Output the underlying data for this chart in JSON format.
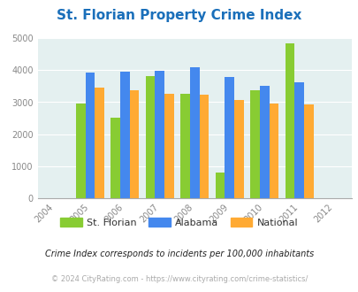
{
  "title": "St. Florian Property Crime Index",
  "years": [
    2005,
    2006,
    2007,
    2008,
    2009,
    2010,
    2011
  ],
  "st_florian": [
    2950,
    2520,
    3820,
    3250,
    820,
    3370,
    4840
  ],
  "alabama": [
    3920,
    3960,
    3980,
    4100,
    3780,
    3520,
    3610
  ],
  "national": [
    3450,
    3360,
    3250,
    3230,
    3060,
    2970,
    2940
  ],
  "colors": {
    "st_florian": "#88cc33",
    "alabama": "#4488ee",
    "national": "#ffaa33"
  },
  "legend_labels": [
    "St. Florian",
    "Alabama",
    "National"
  ],
  "xlim": [
    2003.5,
    2012.5
  ],
  "ylim": [
    0,
    5000
  ],
  "yticks": [
    0,
    1000,
    2000,
    3000,
    4000,
    5000
  ],
  "xticks": [
    2004,
    2005,
    2006,
    2007,
    2008,
    2009,
    2010,
    2011,
    2012
  ],
  "bg_color": "#e4f0f0",
  "subtitle": "Crime Index corresponds to incidents per 100,000 inhabitants",
  "footer": "© 2024 CityRating.com - https://www.cityrating.com/crime-statistics/",
  "bar_width": 0.27,
  "title_color": "#1a6fba",
  "tick_color": "#888888",
  "subtitle_color": "#222222",
  "footer_color": "#aaaaaa"
}
